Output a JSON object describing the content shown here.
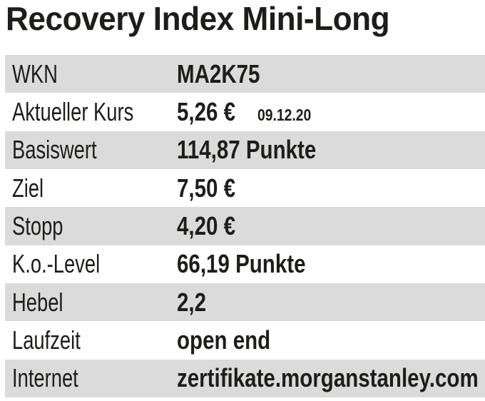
{
  "title": "Recovery Index Mini-Long",
  "colors": {
    "row_stripe": "#dbdbdb",
    "text": "#1d1d1b",
    "background": "#ffffff"
  },
  "table": {
    "rows": [
      {
        "label": "WKN",
        "value": "MA2K75"
      },
      {
        "label": "Aktueller Kurs",
        "value": "5,26 €",
        "note": "09.12.20"
      },
      {
        "label": "Basiswert",
        "value": "114,87 Punkte"
      },
      {
        "label": "Ziel",
        "value": "7,50 €"
      },
      {
        "label": "Stopp",
        "value": "4,20 €"
      },
      {
        "label": "K.o.-Level",
        "value": "66,19 Punkte"
      },
      {
        "label": "Hebel",
        "value": "2,2"
      },
      {
        "label": "Laufzeit",
        "value": "open end"
      },
      {
        "label": "Internet",
        "value": "zertifikate.morganstanley.com"
      }
    ]
  }
}
